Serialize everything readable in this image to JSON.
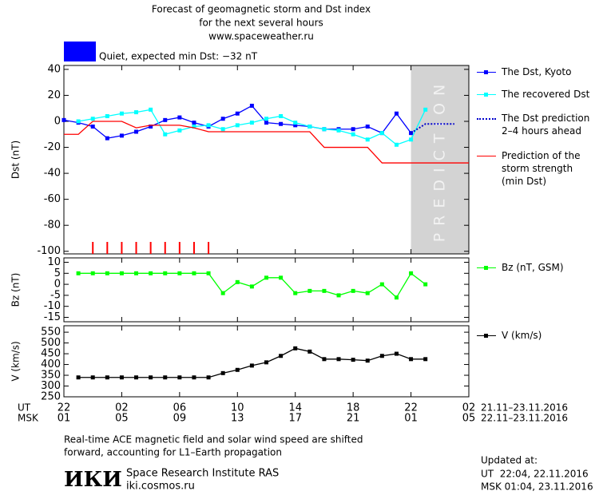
{
  "chart_data": [
    {
      "type": "line",
      "title": "Forecast of geomagnetic storm and Dst index",
      "subtitle": "for the next several hours",
      "source": "www.spaceweather.ru",
      "status": "Quiet, expected min Dst: −32 nT",
      "status_color": "#0000ff",
      "ylabel": "Dst (nT)",
      "ylim": [
        -102,
        43
      ],
      "yticks": [
        40,
        20,
        0,
        -20,
        -40,
        -60,
        -80,
        -100
      ],
      "xlim": [
        0,
        28
      ],
      "x": [
        0,
        1,
        2,
        3,
        4,
        5,
        6,
        7,
        8,
        9,
        10,
        11,
        12,
        13,
        14,
        15,
        16,
        17,
        18,
        19,
        20,
        21,
        22,
        23,
        24,
        25,
        26,
        27,
        28
      ],
      "shade": {
        "x": [
          24,
          28
        ],
        "label": "PREDICTION",
        "color": "#d3d3d3"
      },
      "markers_x": [
        2,
        3,
        4,
        5,
        6,
        7,
        8,
        9,
        10
      ],
      "markers_color": "#ff0000",
      "series": [
        {
          "name": "The Dst, Kyoto",
          "color": "#0000ff",
          "marker": true,
          "dash": false,
          "values": [
            1,
            -1,
            -4,
            -13,
            -11,
            -8,
            -4,
            1,
            3,
            -1,
            -4,
            2,
            6,
            12,
            -1,
            -2,
            -3,
            -4,
            -6,
            -6,
            -6,
            -4,
            -9,
            6,
            -9,
            null,
            null,
            null,
            null
          ]
        },
        {
          "name": "The recovered Dst",
          "color": "#00ffff",
          "marker": true,
          "dash": false,
          "values": [
            null,
            0,
            2,
            4,
            6,
            7,
            9,
            -10,
            -7,
            -4,
            -3,
            -6,
            -3,
            -1,
            2,
            4,
            -1,
            -4,
            -6,
            -7,
            -10,
            -14,
            -9,
            -18,
            -14,
            9,
            null,
            null,
            null
          ]
        },
        {
          "name": "The Dst prediction\n2–4 hours ahead",
          "color": "#0000cc",
          "marker": false,
          "dash": true,
          "values": [
            null,
            null,
            null,
            null,
            null,
            null,
            null,
            null,
            null,
            null,
            null,
            null,
            null,
            null,
            null,
            null,
            null,
            null,
            null,
            null,
            null,
            null,
            null,
            null,
            -9,
            -2,
            -2,
            -2,
            null
          ]
        },
        {
          "name": "Prediction of the\nstorm strength\n(min Dst)",
          "color": "#ff0000",
          "marker": false,
          "dash": false,
          "values": [
            -10,
            -10,
            0,
            0,
            0,
            -5,
            -3,
            -3,
            -3,
            -5,
            -8,
            -8,
            -8,
            -8,
            -8,
            -8,
            -8,
            -8,
            -20,
            -20,
            -20,
            -20,
            -32,
            -32,
            -32,
            -32,
            -32,
            -32,
            -32
          ]
        }
      ]
    },
    {
      "type": "line",
      "ylabel": "Bz (nT)",
      "ylim": [
        -17,
        12
      ],
      "yticks": [
        10,
        5,
        0,
        -5,
        -10,
        -15
      ],
      "xlim": [
        0,
        28
      ],
      "x": [
        0,
        1,
        2,
        3,
        4,
        5,
        6,
        7,
        8,
        9,
        10,
        11,
        12,
        13,
        14,
        15,
        16,
        17,
        18,
        19,
        20,
        21,
        22,
        23,
        24,
        25,
        26,
        27,
        28
      ],
      "series": [
        {
          "name": "Bz (nT, GSM)",
          "color": "#00ff00",
          "marker": true,
          "dash": false,
          "values": [
            null,
            5,
            5,
            5,
            5,
            5,
            5,
            5,
            5,
            5,
            5,
            -4,
            1,
            -1,
            3,
            3,
            -4,
            -3,
            -3,
            -5,
            -3,
            -4,
            0,
            -6,
            5,
            0,
            null,
            null,
            null
          ]
        }
      ]
    },
    {
      "type": "line",
      "ylabel": "V (km/s)",
      "ylim": [
        250,
        580
      ],
      "yticks": [
        550,
        500,
        450,
        400,
        350,
        300,
        250
      ],
      "xlim": [
        0,
        28
      ],
      "x": [
        0,
        1,
        2,
        3,
        4,
        5,
        6,
        7,
        8,
        9,
        10,
        11,
        12,
        13,
        14,
        15,
        16,
        17,
        18,
        19,
        20,
        21,
        22,
        23,
        24,
        25,
        26,
        27,
        28
      ],
      "ut_label": "UT",
      "msk_label": "MSK",
      "ut_range": "21.11–23.11.2016",
      "msk_range": "22.11–23.11.2016",
      "xticks": [
        {
          "value": 0,
          "label": "22"
        },
        {
          "value": 4,
          "label": "02"
        },
        {
          "value": 8,
          "label": "06"
        },
        {
          "value": 12,
          "label": "10"
        },
        {
          "value": 16,
          "label": "14"
        },
        {
          "value": 20,
          "label": "18"
        },
        {
          "value": 24,
          "label": "22"
        },
        {
          "value": 28,
          "label": "02"
        }
      ],
      "xticks_msk": [
        {
          "value": 0,
          "label": "01"
        },
        {
          "value": 4,
          "label": "05"
        },
        {
          "value": 8,
          "label": "09"
        },
        {
          "value": 12,
          "label": "13"
        },
        {
          "value": 16,
          "label": "17"
        },
        {
          "value": 20,
          "label": "21"
        },
        {
          "value": 24,
          "label": "01"
        },
        {
          "value": 28,
          "label": "05"
        }
      ],
      "series": [
        {
          "name": "V (km/s)",
          "color": "#000000",
          "marker": true,
          "dash": false,
          "values": [
            null,
            340,
            340,
            340,
            340,
            340,
            340,
            340,
            340,
            340,
            340,
            360,
            375,
            395,
            410,
            440,
            475,
            460,
            425,
            425,
            422,
            418,
            440,
            450,
            425,
            425,
            null,
            null,
            null
          ]
        }
      ]
    }
  ],
  "footer": {
    "note": [
      "Real-time ACE magnetic field and solar wind speed are shifted",
      "forward, accounting for L1–Earth propagation"
    ],
    "logo": "ИКИ",
    "institute": "Space Research Institute RAS",
    "site": "iki.cosmos.ru",
    "updated": "Updated at:",
    "updated_ut": "UT  22:04, 22.11.2016",
    "updated_msk": "MSK 01:04, 23.11.2016"
  }
}
